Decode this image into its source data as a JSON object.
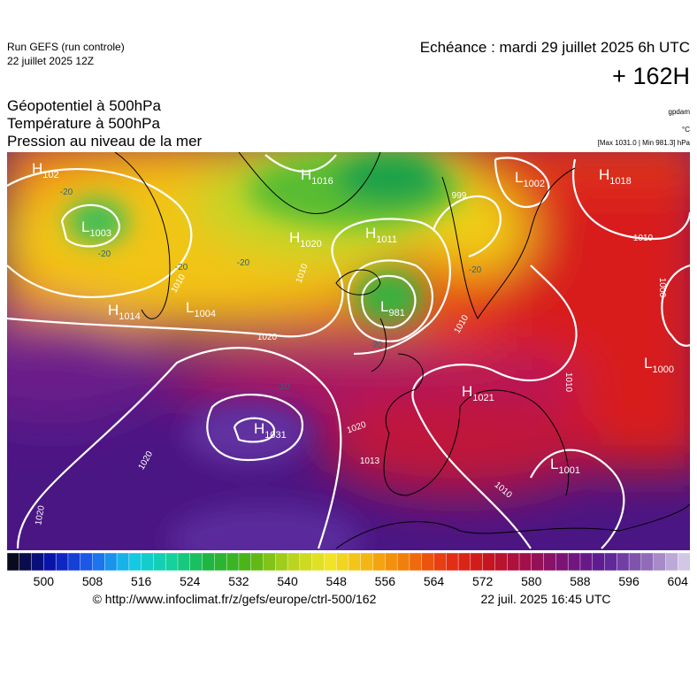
{
  "header": {
    "run": "Run GEFS (run controle)",
    "run_date": "22 juillet 2025 12Z",
    "valid": "Echéance : mardi 29 juillet 2025 6h UTC",
    "lead": "+ 162H"
  },
  "fields": [
    {
      "title": "Géopotentiel à 500hPa",
      "unit": "gpdam"
    },
    {
      "title": "Température à 500hPa",
      "unit": "°C"
    },
    {
      "title": "Pression au niveau de la mer",
      "unit": "[Max 1031.0 | Min 981.3] hPa"
    }
  ],
  "centers": [
    {
      "symbol": "H",
      "value": "102"
    },
    {
      "symbol": "L",
      "value": "1003"
    },
    {
      "symbol": "H",
      "value": "1016"
    },
    {
      "symbol": "H",
      "value": "1020"
    },
    {
      "symbol": "H",
      "value": "1011"
    },
    {
      "symbol": "L",
      "value": "1002"
    },
    {
      "symbol": "H",
      "value": "1018"
    },
    {
      "symbol": "H",
      "value": "1014"
    },
    {
      "symbol": "L",
      "value": "1004"
    },
    {
      "symbol": "L",
      "value": "981"
    },
    {
      "symbol": "H",
      "value": "1021"
    },
    {
      "symbol": "L",
      "value": "1000"
    },
    {
      "symbol": "H",
      "value": "1031"
    },
    {
      "symbol": "L",
      "value": "1001"
    }
  ],
  "isobar_labels": [
    "999",
    "1013",
    "1010",
    "1020",
    "1010",
    "1000",
    "1010",
    "1020",
    "1020",
    "1020",
    "1010",
    "1010",
    "1010"
  ],
  "temperature_labels": [
    "-20",
    "-20",
    "-20",
    "-20",
    "-20",
    "-20",
    "-10"
  ],
  "colorbar": {
    "range": [
      494,
      606
    ],
    "step": 2,
    "ticks": [
      500,
      508,
      516,
      524,
      532,
      540,
      548,
      556,
      564,
      572,
      580,
      588,
      596,
      604
    ],
    "colors": [
      "#0a0a1e",
      "#0a14b4",
      "#1e64f0",
      "#14c8e6",
      "#14d2a0",
      "#1eb43c",
      "#50b414",
      "#b4d21e",
      "#f0e628",
      "#f5b414",
      "#f0780a",
      "#e63214",
      "#c8141e",
      "#a0104a",
      "#781478",
      "#5a1e96",
      "#8c64b4",
      "#d2c8e6"
    ]
  },
  "footer": {
    "source": "© http://www.infoclimat.fr/z/gefs/europe/ctrl-500/162",
    "generated": "22 juil. 2025 16:45 UTC"
  }
}
